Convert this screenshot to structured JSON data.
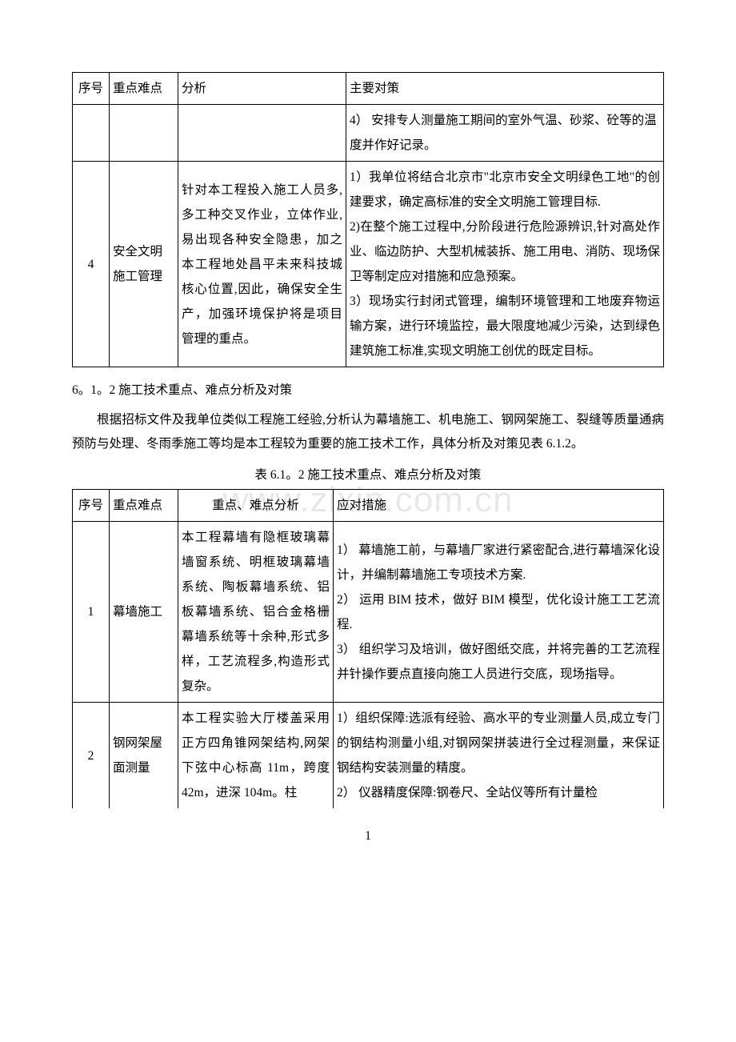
{
  "watermark": "www.zlxin.com.cn",
  "page_number": "1",
  "table1": {
    "headers": {
      "seq": "序号",
      "point": "重点难点",
      "analysis": "分析",
      "measure": "主要对策"
    },
    "row_cont": {
      "measure": "4）  安排专人测量施工期间的室外气温、砂浆、砼等的温度并作好记录。"
    },
    "row4": {
      "seq": "4",
      "point": "安全文明施工管理",
      "analysis": "针对本工程投入施工人员多,多工种交叉作业，立体作业,易出现各种安全隐患，加之本工程地处昌平未来科技城核心位置,因此，确保安全生产，加强环境保护将是项目管理的重点。",
      "measure": "1）我单位将结合北京市\"北京市安全文明绿色工地\"的创建要求，确定高标准的安全文明施工管理目标.\n2)在整个施工过程中,分阶段进行危险源辨识,针对高处作业、临边防护、大型机械装拆、施工用电、消防、现场保卫等制定应对措施和应急预案。\n3）现场实行封闭式管理，编制环境管理和工地废弃物运输方案，进行环境监控，最大限度地减少污染，达到绿色建筑施工标准,实现文明施工创优的既定目标。"
    }
  },
  "section612": {
    "title": "6。1。2  施工技术重点、难点分析及对策",
    "para": "根据招标文件及我单位类似工程施工经验,分析认为幕墙施工、机电施工、钢网架施工、裂缝等质量通病预防与处理、冬雨季施工等均是本工程较为重要的施工技术工作，具体分析及对策见表 6.1.2。",
    "table_title": "表 6.1。2  施工技术重点、难点分析及对策"
  },
  "table2": {
    "headers": {
      "seq": "序号",
      "point": "重点难点",
      "analysis": "重点、难点分析",
      "measure": "应对措施"
    },
    "row1": {
      "seq": "1",
      "point": "幕墙施工",
      "analysis": "本工程幕墙有隐框玻璃幕墙窗系统、明框玻璃幕墙系统、陶板幕墙系统、铝板幕墙系统、铝合金格栅幕墙系统等十余种,形式多样，工艺流程多,构造形式复杂。",
      "measure": "1）  幕墙施工前，与幕墙厂家进行紧密配合,进行幕墙深化设计，并编制幕墙施工专项技术方案.\n2）  运用 BIM 技术，做好 BIM 模型，优化设计施工工艺流程.\n3）  组织学习及培训，做好图纸交底，并将完善的工艺流程并针操作要点直接向施工人员进行交底，现场指导。"
    },
    "row2": {
      "seq": "2",
      "point": "钢网架屋面测量",
      "analysis": "本工程实验大厅楼盖采用正方四角锥网架结构,网架下弦中心标高 11m，跨度 42m，进深 104m。柱",
      "measure": "1）组织保障:选派有经验、高水平的专业测量人员,成立专门的钢结构测量小组,对钢网架拼装进行全过程测量，来保证钢结构安装测量的精度。\n2）  仪器精度保障:钢卷尺、全站仪等所有计量检"
    }
  },
  "font_sizes": {
    "body": 15.5,
    "watermark": 44
  },
  "colors": {
    "text": "#000000",
    "border": "#000000",
    "background": "#ffffff",
    "watermark": "rgba(0,0,0,0.09)"
  }
}
